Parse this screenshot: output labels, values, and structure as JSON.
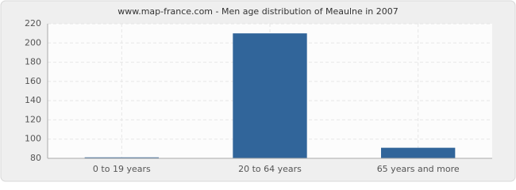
{
  "chart_data": {
    "type": "bar",
    "title": "www.map-france.com - Men age distribution of Meaulne in 2007",
    "categories": [
      "0 to 19 years",
      "20 to 64 years",
      "65 years and more"
    ],
    "values": [
      81,
      210,
      91
    ],
    "color": "#31659a",
    "ylim": [
      80,
      220
    ],
    "yticks": [
      80,
      100,
      120,
      140,
      160,
      180,
      200,
      220
    ],
    "grid": true
  }
}
